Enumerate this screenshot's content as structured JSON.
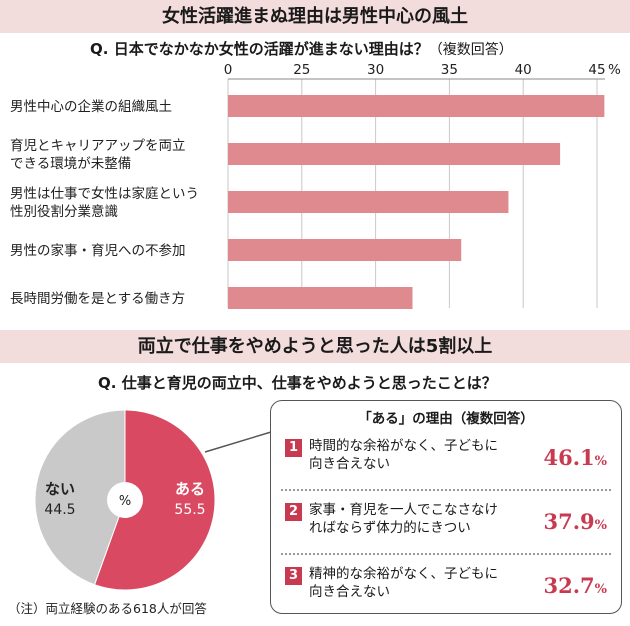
{
  "section1": {
    "banner": "女性活躍進まぬ理由は男性中心の風土",
    "question_prefix": "Q.",
    "question": "日本でなかなか女性の活躍が進まない理由は？",
    "question_note": "（複数回答）"
  },
  "section2": {
    "banner": "両立で仕事をやめようと思った人は5割以上",
    "question_prefix": "Q.",
    "question": "仕事と育児の両立中、仕事をやめようと思ったことは？",
    "pie_center": "%",
    "note": "（注）両立経験のある618人が回答",
    "reasons_title": "「ある」の理由（複数回答）",
    "reasons": [
      {
        "rank": "1",
        "line1": "時間的な余裕がなく、子どもに",
        "line2": "向き合えない",
        "value": "46.1",
        "unit": "%"
      },
      {
        "rank": "2",
        "line1": "家事・育児を一人でこなさなけ",
        "line2": "ればならず体力的にきつい",
        "value": "37.9",
        "unit": "%"
      },
      {
        "rank": "3",
        "line1": "精神的な余裕がなく、子どもに",
        "line2": "向き合えない",
        "value": "32.7",
        "unit": "%"
      }
    ]
  },
  "colors": {
    "bar": "#de8a8e",
    "pie_yes": "#d94a62",
    "pie_no": "#c9c9c9",
    "accent": "#c83a50",
    "banner_bg": "#f3dcdc"
  },
  "chart_data": [
    {
      "type": "bar",
      "orientation": "horizontal",
      "categories": [
        [
          "男性中心の企業の組織風土"
        ],
        [
          "育児とキャリアアップを両立",
          "できる環境が未整備"
        ],
        [
          "男性は仕事で女性は家庭という",
          "性別役割分業意識"
        ],
        [
          "男性の家事・育児への不参加"
        ],
        [
          "長時間労働を是とする働き方"
        ]
      ],
      "values": [
        45.5,
        42.5,
        39.0,
        35.8,
        32.5
      ],
      "xlim": [
        20,
        45
      ],
      "axis_break": true,
      "ticks": [
        "0",
        "25",
        "30",
        "35",
        "40",
        "45"
      ],
      "tick_values": [
        20,
        25,
        30,
        35,
        40,
        45
      ],
      "unit_label": "%",
      "grid": true
    },
    {
      "type": "pie",
      "labels": [
        "ある",
        "ない"
      ],
      "values": [
        55.5,
        44.5
      ],
      "value_labels": [
        "55.5",
        "44.5"
      ]
    }
  ]
}
